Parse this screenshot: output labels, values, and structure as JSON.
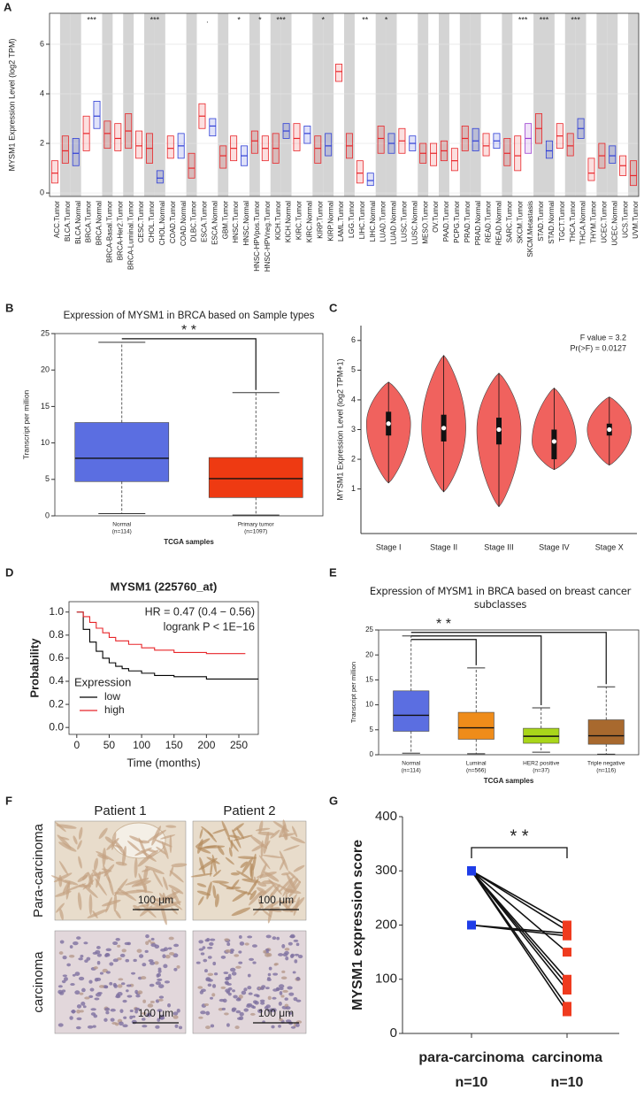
{
  "chart_data": [
    {
      "label": "A",
      "type": "box",
      "ylabel": "MYSM1 Expression Level (log2 TPM)",
      "categories": [
        "ACC.Tumor",
        "BLCA.Tumor",
        "BLCA.Normal",
        "BRCA.Tumor",
        "BRCA.Normal",
        "BRCA-Basal.Tumor",
        "BRCA-Her2.Tumor",
        "BRCA-Luminal.Tumor",
        "CESC.Tumor",
        "CHOL.Tumor",
        "CHOL.Normal",
        "COAD.Tumor",
        "COAD.Normal",
        "DLBC.Tumor",
        "ESCA.Tumor",
        "ESCA.Normal",
        "GBM.Tumor",
        "HNSC.Tumor",
        "HNSC.Normal",
        "HNSC-HPVpos.Tumor",
        "HNSC-HPVneg.Tumor",
        "KICH.Tumor",
        "KICH.Normal",
        "KIRC.Tumor",
        "KIRC.Normal",
        "KIRP.Tumor",
        "KIRP.Normal",
        "LAML.Tumor",
        "LGG.Tumor",
        "LIHC.Tumor",
        "LIHC.Normal",
        "LUAD.Tumor",
        "LUAD.Normal",
        "LUSC.Tumor",
        "LUSC.Normal",
        "MESO.Tumor",
        "OV.Tumor",
        "PAAD.Tumor",
        "PCPG.Tumor",
        "PRAD.Tumor",
        "PRAD.Normal",
        "READ.Tumor",
        "READ.Normal",
        "SARC.Tumor",
        "SKCM.Tumor",
        "SKCM.Metastasis",
        "STAD.Tumor",
        "STAD.Normal",
        "TGCT.Tumor",
        "THCA.Tumor",
        "THCA.Normal",
        "THYM.Tumor",
        "UCEC.Tumor",
        "UCEC.Normal",
        "UCS.Tumor",
        "UVM.Tumor"
      ],
      "boxes": [
        {
          "q1": 0.4,
          "median": 0.8,
          "q3": 1.3
        },
        {
          "q1": 1.2,
          "median": 1.7,
          "q3": 2.3
        },
        {
          "q1": 1.1,
          "median": 1.6,
          "q3": 2.2
        },
        {
          "q1": 1.7,
          "median": 2.4,
          "q3": 3.1
        },
        {
          "q1": 2.6,
          "median": 3.1,
          "q3": 3.7
        },
        {
          "q1": 1.8,
          "median": 2.4,
          "q3": 2.9
        },
        {
          "q1": 1.7,
          "median": 2.2,
          "q3": 2.8
        },
        {
          "q1": 1.8,
          "median": 2.5,
          "q3": 3.2
        },
        {
          "q1": 1.4,
          "median": 1.9,
          "q3": 2.5
        },
        {
          "q1": 1.2,
          "median": 1.8,
          "q3": 2.4
        },
        {
          "q1": 0.4,
          "median": 0.6,
          "q3": 0.9
        },
        {
          "q1": 1.4,
          "median": 1.8,
          "q3": 2.3
        },
        {
          "q1": 1.4,
          "median": 1.9,
          "q3": 2.4
        },
        {
          "q1": 0.6,
          "median": 1.0,
          "q3": 1.6
        },
        {
          "q1": 2.6,
          "median": 3.1,
          "q3": 3.6
        },
        {
          "q1": 2.3,
          "median": 2.7,
          "q3": 3.0
        },
        {
          "q1": 1.0,
          "median": 1.5,
          "q3": 1.9
        },
        {
          "q1": 1.3,
          "median": 1.8,
          "q3": 2.3
        },
        {
          "q1": 1.1,
          "median": 1.5,
          "q3": 1.9
        },
        {
          "q1": 1.6,
          "median": 2.1,
          "q3": 2.5
        },
        {
          "q1": 1.3,
          "median": 1.8,
          "q3": 2.3
        },
        {
          "q1": 1.2,
          "median": 1.8,
          "q3": 2.4
        },
        {
          "q1": 2.2,
          "median": 2.5,
          "q3": 2.8
        },
        {
          "q1": 1.7,
          "median": 2.2,
          "q3": 2.8
        },
        {
          "q1": 2.0,
          "median": 2.4,
          "q3": 2.7
        },
        {
          "q1": 1.2,
          "median": 1.8,
          "q3": 2.3
        },
        {
          "q1": 1.5,
          "median": 1.9,
          "q3": 2.4
        },
        {
          "q1": 4.5,
          "median": 4.9,
          "q3": 5.2
        },
        {
          "q1": 1.4,
          "median": 1.9,
          "q3": 2.4
        },
        {
          "q1": 0.4,
          "median": 0.8,
          "q3": 1.3
        },
        {
          "q1": 0.3,
          "median": 0.5,
          "q3": 0.8
        },
        {
          "q1": 1.6,
          "median": 2.2,
          "q3": 2.7
        },
        {
          "q1": 1.6,
          "median": 2.0,
          "q3": 2.4
        },
        {
          "q1": 1.6,
          "median": 2.1,
          "q3": 2.6
        },
        {
          "q1": 1.7,
          "median": 2.0,
          "q3": 2.3
        },
        {
          "q1": 1.2,
          "median": 1.6,
          "q3": 2.0
        },
        {
          "q1": 1.1,
          "median": 1.6,
          "q3": 2.0
        },
        {
          "q1": 1.3,
          "median": 1.7,
          "q3": 2.1
        },
        {
          "q1": 0.9,
          "median": 1.3,
          "q3": 1.8
        },
        {
          "q1": 1.7,
          "median": 2.2,
          "q3": 2.7
        },
        {
          "q1": 1.7,
          "median": 2.1,
          "q3": 2.6
        },
        {
          "q1": 1.5,
          "median": 1.9,
          "q3": 2.4
        },
        {
          "q1": 1.8,
          "median": 2.1,
          "q3": 2.4
        },
        {
          "q1": 1.1,
          "median": 1.6,
          "q3": 2.2
        },
        {
          "q1": 0.9,
          "median": 1.5,
          "q3": 2.3
        },
        {
          "q1": 1.6,
          "median": 2.2,
          "q3": 2.8
        },
        {
          "q1": 2.0,
          "median": 2.6,
          "q3": 3.2
        },
        {
          "q1": 1.4,
          "median": 1.7,
          "q3": 2.1
        },
        {
          "q1": 1.8,
          "median": 2.3,
          "q3": 2.8
        },
        {
          "q1": 1.5,
          "median": 1.9,
          "q3": 2.4
        },
        {
          "q1": 2.2,
          "median": 2.6,
          "q3": 3.0
        },
        {
          "q1": 0.5,
          "median": 0.8,
          "q3": 1.4
        },
        {
          "q1": 1.0,
          "median": 1.5,
          "q3": 2.0
        },
        {
          "q1": 1.2,
          "median": 1.5,
          "q3": 1.9
        },
        {
          "q1": 0.7,
          "median": 1.1,
          "q3": 1.5
        },
        {
          "q1": 0.3,
          "median": 0.7,
          "q3": 1.3
        }
      ],
      "colors": [
        "#e8262a",
        "#e8262a",
        "#2f3fd6",
        "#e8262a",
        "#2f3fd6",
        "#e8262a",
        "#e8262a",
        "#e8262a",
        "#e8262a",
        "#e8262a",
        "#2f3fd6",
        "#e8262a",
        "#2f3fd6",
        "#e8262a",
        "#e8262a",
        "#2f3fd6",
        "#e8262a",
        "#e8262a",
        "#2f3fd6",
        "#e8262a",
        "#e8262a",
        "#e8262a",
        "#2f3fd6",
        "#e8262a",
        "#2f3fd6",
        "#e8262a",
        "#2f3fd6",
        "#e8262a",
        "#e8262a",
        "#e8262a",
        "#2f3fd6",
        "#e8262a",
        "#2f3fd6",
        "#e8262a",
        "#2f3fd6",
        "#e8262a",
        "#e8262a",
        "#e8262a",
        "#e8262a",
        "#e8262a",
        "#2f3fd6",
        "#e8262a",
        "#2f3fd6",
        "#e8262a",
        "#e8262a",
        "#9b3fd0",
        "#e8262a",
        "#2f3fd6",
        "#e8262a",
        "#e8262a",
        "#2f3fd6",
        "#e8262a",
        "#e8262a",
        "#2f3fd6",
        "#e8262a",
        "#e8262a"
      ],
      "significance": [
        null,
        null,
        null,
        "***",
        null,
        null,
        null,
        null,
        null,
        "***",
        null,
        null,
        null,
        null,
        ".",
        null,
        null,
        "*",
        null,
        "*",
        null,
        "***",
        null,
        null,
        null,
        "*",
        null,
        null,
        null,
        "**",
        null,
        "*",
        null,
        null,
        null,
        null,
        null,
        null,
        null,
        null,
        null,
        null,
        null,
        null,
        "***",
        null,
        "***",
        null,
        null,
        "***",
        null,
        null,
        null,
        null,
        null,
        null
      ],
      "ylim": [
        -0.14,
        7.25
      ],
      "yticks": [
        0,
        2,
        4,
        6
      ],
      "grid": true
    },
    {
      "label": "B",
      "type": "box",
      "title": "Expression of MYSM1 in BRCA based on Sample types",
      "ylabel": "Transcript per million",
      "xlabel": "TCGA samples",
      "categories": [
        "Normal",
        "Primary tumor"
      ],
      "sample_sizes": [
        "(n=114)",
        "(n=1097)"
      ],
      "boxes": [
        {
          "min": 0.3,
          "q1": 4.7,
          "median": 7.9,
          "q3": 12.8,
          "max": 23.8
        },
        {
          "min": 0.1,
          "q1": 2.5,
          "median": 5.1,
          "q3": 8.0,
          "max": 16.9
        }
      ],
      "colors": [
        "#5b6ee1",
        "#ee3a12"
      ],
      "significance": "* *",
      "ylim": [
        0,
        25
      ],
      "yticks": [
        0,
        5,
        10,
        15,
        20,
        25
      ]
    },
    {
      "label": "C",
      "type": "violin",
      "ylabel": "MYSM1 Expression Level (log2 TPM+1)",
      "categories": [
        "Stage I",
        "Stage II",
        "Stage III",
        "Stage IV",
        "Stage X"
      ],
      "violins": [
        {
          "min": 1.2,
          "q1": 2.8,
          "median": 3.2,
          "q3": 3.6,
          "max": 4.6
        },
        {
          "min": 0.9,
          "q1": 2.6,
          "median": 3.05,
          "q3": 3.5,
          "max": 5.5
        },
        {
          "min": 0.4,
          "q1": 2.5,
          "median": 3.0,
          "q3": 3.4,
          "max": 4.9
        },
        {
          "min": 1.65,
          "q1": 2.0,
          "median": 2.6,
          "q3": 3.0,
          "max": 4.4
        },
        {
          "min": 1.8,
          "q1": 2.8,
          "median": 3.0,
          "q3": 3.2,
          "max": 4.1
        }
      ],
      "color": "#f0625e",
      "annotations": [
        "F value = 3.2",
        "Pr(>F) = 0.0127"
      ],
      "ylim": [
        -0.5,
        6.5
      ],
      "yticks": [
        1,
        2,
        3,
        4,
        5,
        6
      ]
    },
    {
      "label": "D",
      "type": "survival",
      "title": "MYSM1 (225760_at)",
      "annotations": [
        "HR = 0.47 (0.4 − 0.56)",
        "logrank P < 1E−16"
      ],
      "xlabel": "Time (months)",
      "ylabel": "Probability",
      "legend_title": "Expression",
      "legend": "lower left",
      "series": [
        {
          "name": "low",
          "color": "#000000",
          "x": [
            0,
            10,
            20,
            30,
            40,
            50,
            60,
            70,
            80,
            100,
            120,
            150,
            200,
            280
          ],
          "values": [
            1.0,
            0.85,
            0.74,
            0.66,
            0.6,
            0.56,
            0.53,
            0.51,
            0.49,
            0.47,
            0.45,
            0.44,
            0.42,
            0.42
          ]
        },
        {
          "name": "high",
          "color": "#e8262a",
          "x": [
            0,
            10,
            20,
            30,
            40,
            50,
            60,
            80,
            100,
            120,
            150,
            200,
            260
          ],
          "values": [
            1.0,
            0.96,
            0.91,
            0.86,
            0.82,
            0.78,
            0.75,
            0.72,
            0.69,
            0.67,
            0.65,
            0.64,
            0.64
          ]
        }
      ],
      "xlim": [
        -12,
        280
      ],
      "xticks": [
        0,
        50,
        100,
        150,
        200,
        250
      ],
      "ylim": [
        -0.06,
        1.09
      ],
      "yticks": [
        {
          "value": 0,
          "label": "0.0"
        },
        {
          "value": 0.2,
          "label": "0.2"
        },
        {
          "value": 0.4,
          "label": "0.4"
        },
        {
          "value": 0.6,
          "label": "0.6"
        },
        {
          "value": 0.8,
          "label": "0.8"
        },
        {
          "value": 1,
          "label": "1.0"
        }
      ]
    },
    {
      "label": "E",
      "type": "box",
      "title": "Expression of MYSM1 in BRCA based on breast cancer subclasses",
      "ylabel": "Transcript per million",
      "xlabel": "TCGA samples",
      "categories": [
        "Normal",
        "Luminal",
        "HER2 positive",
        "Triple negative"
      ],
      "sample_sizes": [
        "(n=114)",
        "(n=566)",
        "(n=37)",
        "(n=116)"
      ],
      "boxes": [
        {
          "min": 0.3,
          "q1": 4.7,
          "median": 7.9,
          "q3": 12.8,
          "max": 23.8
        },
        {
          "min": 0.2,
          "q1": 3.1,
          "median": 5.4,
          "q3": 8.5,
          "max": 17.4
        },
        {
          "min": 0.5,
          "q1": 2.3,
          "median": 3.7,
          "q3": 5.3,
          "max": 9.4
        },
        {
          "min": 0.1,
          "q1": 2.1,
          "median": 3.8,
          "q3": 7.0,
          "max": 13.6
        }
      ],
      "colors": [
        "#5b6ee1",
        "#ef8c1a",
        "#a9d61a",
        "#a8692e"
      ],
      "significance": "* *",
      "ylim": [
        0,
        25
      ],
      "yticks": [
        0,
        5,
        10,
        15,
        20,
        25
      ]
    },
    {
      "label": "G",
      "type": "paired",
      "ylabel": "MYSM1 expression score",
      "categories": [
        "para-carcinoma",
        "carcinoma"
      ],
      "sample_sizes": [
        "n=10",
        "n=10"
      ],
      "values": [
        [
          300,
          300,
          300,
          300,
          300,
          300,
          300,
          300,
          200,
          200
        ],
        [
          200,
          190,
          150,
          100,
          90,
          80,
          50,
          40,
          185,
          180
        ]
      ],
      "colors": [
        "#1f3de8",
        "#ef3b1f"
      ],
      "significance": "* *",
      "ylim": [
        0,
        400
      ],
      "yticks": [
        0,
        100,
        200,
        300,
        400
      ]
    }
  ],
  "image_panel": {
    "label": "F",
    "columns": [
      "Patient 1",
      "Patient 2"
    ],
    "rows": [
      "Para-carcinoma",
      "carcinoma"
    ],
    "scale_bars": [
      "100 μm",
      "100 μm",
      "100 μm",
      "100 μm"
    ]
  }
}
